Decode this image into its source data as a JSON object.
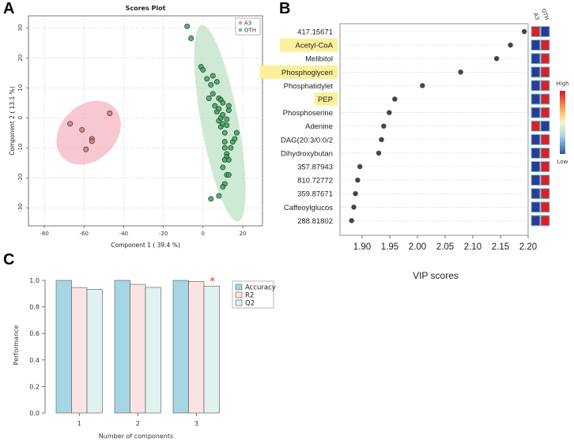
{
  "panels": {
    "a": "A",
    "b": "B",
    "c": "C"
  },
  "chart_data": [
    {
      "type": "scatter",
      "title": "Scores Plot",
      "xlabel": "Component 1 ( 39.4 %)",
      "ylabel": "Component 2 ( 13.1 %)",
      "xlim": [
        -88,
        30
      ],
      "ylim": [
        -36,
        34
      ],
      "xticks": [
        -80,
        -60,
        -40,
        -20,
        0,
        20
      ],
      "yticks": [
        -30,
        -20,
        -10,
        0,
        10,
        20,
        30
      ],
      "legend_position": "top-right",
      "series": [
        {
          "name": "A3",
          "color": "#e0738a",
          "ellipse_color": "#f4b6c3",
          "points": [
            [
              -67,
              -2
            ],
            [
              -61,
              -4
            ],
            [
              -56,
              -7
            ],
            [
              -56,
              -7.8
            ],
            [
              -59,
              -10.5
            ],
            [
              -47,
              1.5
            ]
          ]
        },
        {
          "name": "OTH",
          "color": "#3aa55f",
          "ellipse_color": "#bfe3c6",
          "points": [
            [
              -8,
              30.5
            ],
            [
              -6,
              26.5
            ],
            [
              -1,
              17
            ],
            [
              0,
              16
            ],
            [
              2,
              13
            ],
            [
              3,
              6.5
            ],
            [
              4,
              11
            ],
            [
              5,
              14
            ],
            [
              5,
              8
            ],
            [
              6,
              4
            ],
            [
              7,
              12
            ],
            [
              7,
              2
            ],
            [
              8,
              6.5
            ],
            [
              8,
              3
            ],
            [
              8,
              -1
            ],
            [
              9,
              6
            ],
            [
              9,
              0
            ],
            [
              9,
              -3
            ],
            [
              10,
              5
            ],
            [
              10,
              1
            ],
            [
              10,
              -2
            ],
            [
              11,
              -5
            ],
            [
              11,
              -8
            ],
            [
              12,
              -0.5
            ],
            [
              12,
              -2.5
            ],
            [
              13,
              2.5
            ],
            [
              13,
              4
            ],
            [
              11,
              -10
            ],
            [
              12,
              -12
            ],
            [
              12,
              -13
            ],
            [
              11,
              -14
            ],
            [
              13,
              -14
            ],
            [
              14,
              -10
            ],
            [
              15,
              -8
            ],
            [
              16,
              -7
            ],
            [
              17,
              -5
            ],
            [
              10,
              -16.5
            ],
            [
              12,
              -19
            ],
            [
              11,
              -22
            ],
            [
              10,
              -23
            ],
            [
              8,
              -26
            ],
            [
              13,
              -19
            ],
            [
              4,
              -27
            ]
          ]
        }
      ]
    },
    {
      "type": "scatter",
      "title": "",
      "xlabel": "VIP scores",
      "xlim": [
        1.86,
        2.2
      ],
      "xticks": [
        "1.90",
        "1.95",
        "2.00",
        "2.05",
        "2.10",
        "2.15",
        "2.20"
      ],
      "heatmap_columns": [
        "A3",
        "OTH"
      ],
      "scale_labels": {
        "high": "High",
        "low": "Low"
      },
      "highlight_color": "#fcf09a",
      "features": [
        {
          "name": "417.15671",
          "vip": 2.193,
          "highlight": false,
          "a3": "high",
          "oth": "low"
        },
        {
          "name": "Acetyl-CoA",
          "vip": 2.168,
          "highlight": true,
          "a3": "low",
          "oth": "high"
        },
        {
          "name": "Melibitol",
          "vip": 2.143,
          "highlight": false,
          "a3": "low",
          "oth": "high"
        },
        {
          "name": "Phosphoglyceri",
          "vip": 2.078,
          "highlight": true,
          "a3": "low",
          "oth": "high"
        },
        {
          "name": "Phosphatidylet",
          "vip": 2.009,
          "highlight": false,
          "a3": "low",
          "oth": "high"
        },
        {
          "name": "PEP",
          "vip": 1.959,
          "highlight": true,
          "a3": "low",
          "oth": "high"
        },
        {
          "name": "Phosphoserine",
          "vip": 1.949,
          "highlight": false,
          "a3": "low",
          "oth": "high"
        },
        {
          "name": "Adenine",
          "vip": 1.939,
          "highlight": false,
          "a3": "high",
          "oth": "low"
        },
        {
          "name": "DAG(20:3/0:0/2",
          "vip": 1.935,
          "highlight": false,
          "a3": "low",
          "oth": "high"
        },
        {
          "name": "Dihydroxybutan",
          "vip": 1.93,
          "highlight": false,
          "a3": "low",
          "oth": "high"
        },
        {
          "name": "357.87943",
          "vip": 1.896,
          "highlight": false,
          "a3": "low",
          "oth": "high"
        },
        {
          "name": "810.72772",
          "vip": 1.892,
          "highlight": false,
          "a3": "low",
          "oth": "high"
        },
        {
          "name": "359.87671",
          "vip": 1.888,
          "highlight": false,
          "a3": "low",
          "oth": "high"
        },
        {
          "name": "Caffeoylglucos",
          "vip": 1.885,
          "highlight": false,
          "a3": "low",
          "oth": "high"
        },
        {
          "name": "288.81802",
          "vip": 1.881,
          "highlight": false,
          "a3": "low",
          "oth": "high"
        }
      ]
    },
    {
      "type": "bar",
      "title": "",
      "xlabel": "Number of components",
      "ylabel": "Performance",
      "ylim": [
        0,
        1.0
      ],
      "yticks": [
        "0.0",
        "0.2",
        "0.4",
        "0.6",
        "0.8",
        "1.0"
      ],
      "categories": [
        "1",
        "2",
        "3"
      ],
      "best_marker": "*",
      "best_category": "3",
      "series": [
        {
          "name": "Accuracy",
          "color": "#a6d6e3",
          "values": [
            1.0,
            1.0,
            1.0
          ]
        },
        {
          "name": "R2",
          "color": "#fbe3e3",
          "values": [
            0.946,
            0.97,
            0.992
          ]
        },
        {
          "name": "Q2",
          "color": "#e0f2ef",
          "values": [
            0.932,
            0.947,
            0.957
          ]
        }
      ]
    }
  ]
}
